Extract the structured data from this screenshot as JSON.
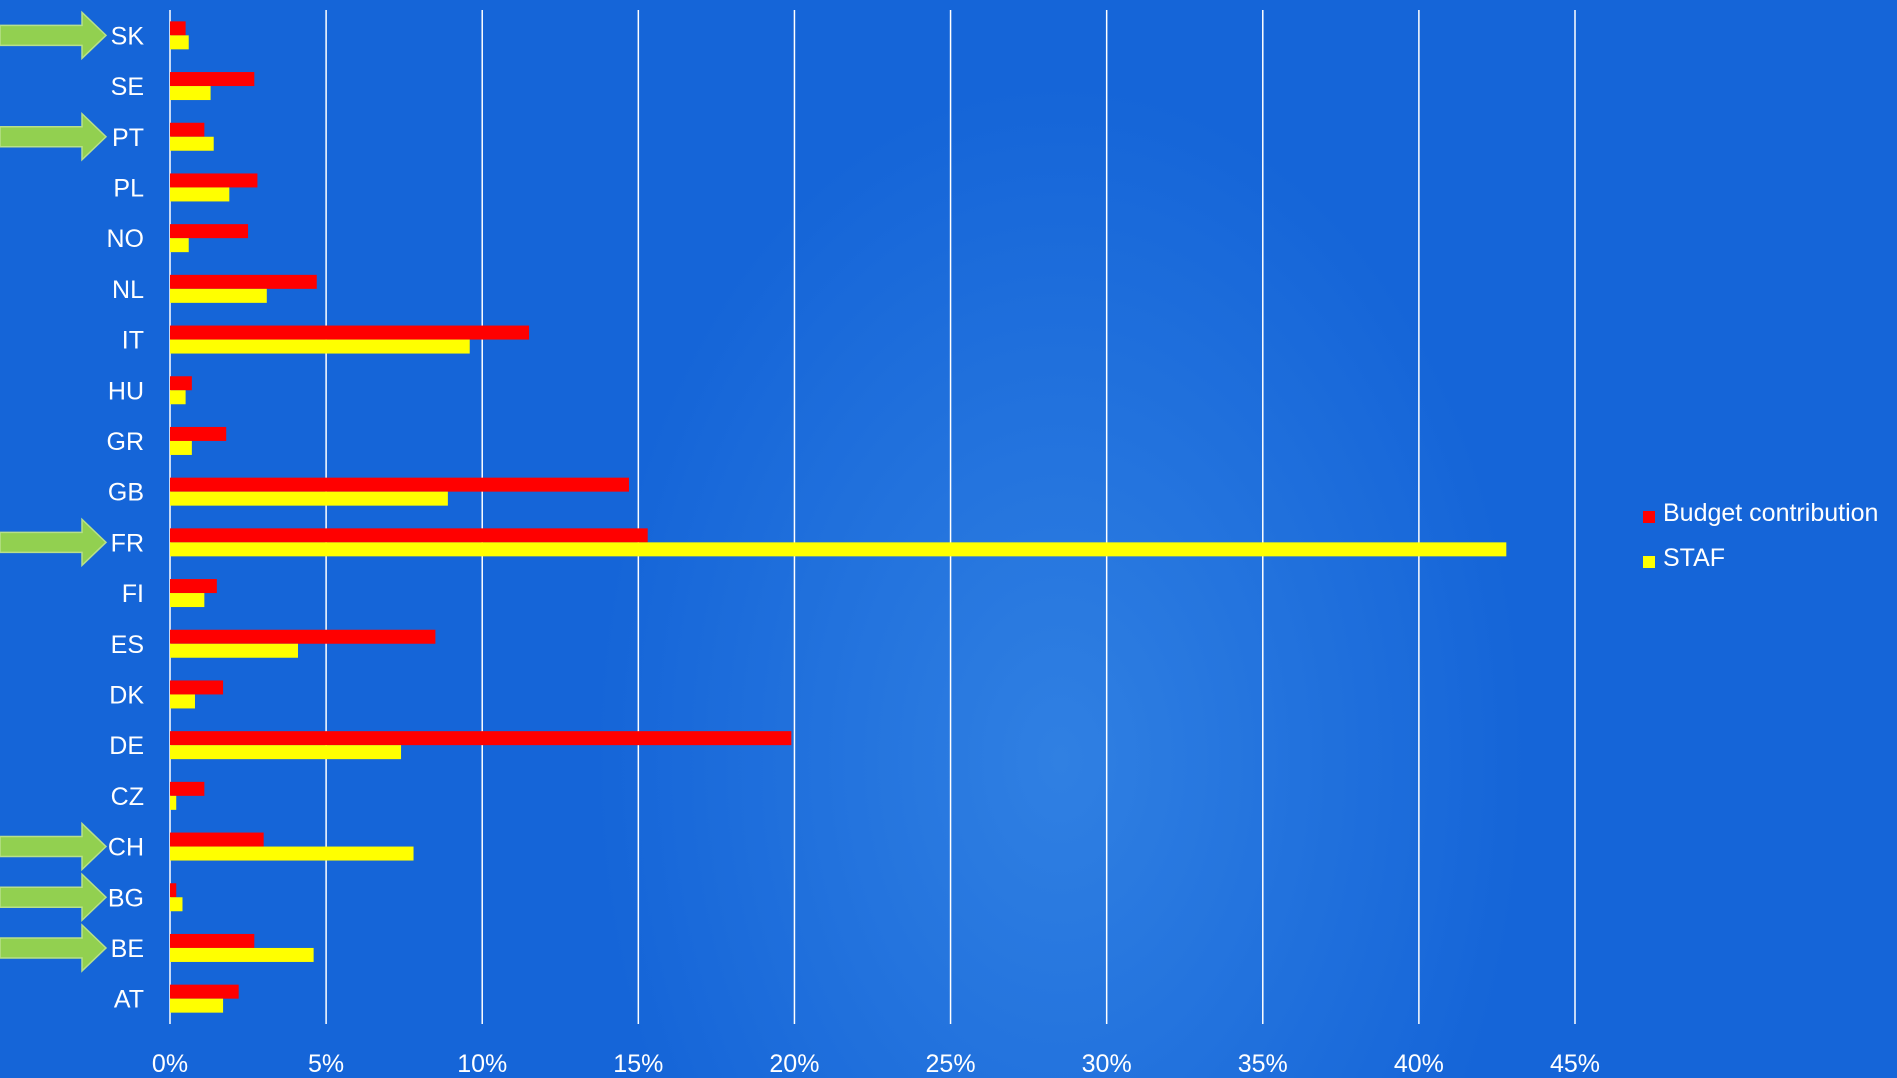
{
  "chart_data": {
    "type": "bar",
    "orientation": "horizontal",
    "categories": [
      "SK",
      "SE",
      "PT",
      "PL",
      "NO",
      "NL",
      "IT",
      "HU",
      "GR",
      "GB",
      "FR",
      "FI",
      "ES",
      "DK",
      "DE",
      "CZ",
      "CH",
      "BG",
      "BE",
      "AT"
    ],
    "series": [
      {
        "name": "Budget contribution",
        "color": "#ff0000",
        "values": [
          0.5,
          2.7,
          1.1,
          2.8,
          2.5,
          4.7,
          11.5,
          0.7,
          1.8,
          14.7,
          15.3,
          1.5,
          8.5,
          1.7,
          19.9,
          1.1,
          3.0,
          0.2,
          2.7,
          2.2
        ]
      },
      {
        "name": "STAF",
        "color": "#ffff00",
        "values": [
          0.6,
          1.3,
          1.4,
          1.9,
          0.6,
          3.1,
          9.6,
          0.5,
          0.7,
          8.9,
          42.8,
          1.1,
          4.1,
          0.8,
          7.4,
          0.2,
          7.8,
          0.4,
          4.6,
          1.7
        ]
      }
    ],
    "highlighted_categories": [
      "SK",
      "PT",
      "FR",
      "CH",
      "BG",
      "BE"
    ],
    "xlim": [
      0,
      45
    ],
    "x_ticks": [
      "0%",
      "5%",
      "10%",
      "15%",
      "20%",
      "25%",
      "30%",
      "35%",
      "40%",
      "45%"
    ],
    "grid": "vertical",
    "legend": "right"
  },
  "colors": {
    "background": "#1565d8",
    "gridline": "#ffffff",
    "arrow": "#92d050",
    "text": "#ffffff"
  },
  "icons": {
    "highlight_marker": "right-arrow-icon"
  }
}
